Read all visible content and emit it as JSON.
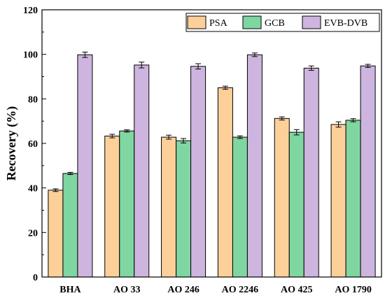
{
  "chart_data": {
    "type": "bar",
    "title": "",
    "xlabel": "",
    "ylabel": "Recovery (%)",
    "ylim": [
      0,
      120
    ],
    "yticks": [
      0,
      20,
      40,
      60,
      80,
      100,
      120
    ],
    "grid": false,
    "legend_position": "top-right",
    "categories": [
      "BHA",
      "AO 33",
      "AO 246",
      "AO 2246",
      "AO 425",
      "AO 1790"
    ],
    "series": [
      {
        "name": "PSA",
        "color": "#fdd09a",
        "values": [
          39.0,
          63.3,
          62.8,
          85.0,
          71.2,
          68.5
        ],
        "errors": [
          0.6,
          0.8,
          0.9,
          0.7,
          0.7,
          1.2
        ]
      },
      {
        "name": "GCB",
        "color": "#7fd6a1",
        "values": [
          46.5,
          65.6,
          61.2,
          62.8,
          65.0,
          70.4
        ],
        "errors": [
          0.5,
          0.5,
          1.0,
          0.6,
          1.2,
          0.7
        ]
      },
      {
        "name": "EVB-DVB",
        "color": "#cdb5df",
        "values": [
          99.8,
          95.2,
          94.6,
          99.8,
          93.8,
          94.8
        ],
        "errors": [
          1.2,
          1.3,
          1.2,
          0.8,
          1.0,
          0.7
        ]
      }
    ]
  }
}
